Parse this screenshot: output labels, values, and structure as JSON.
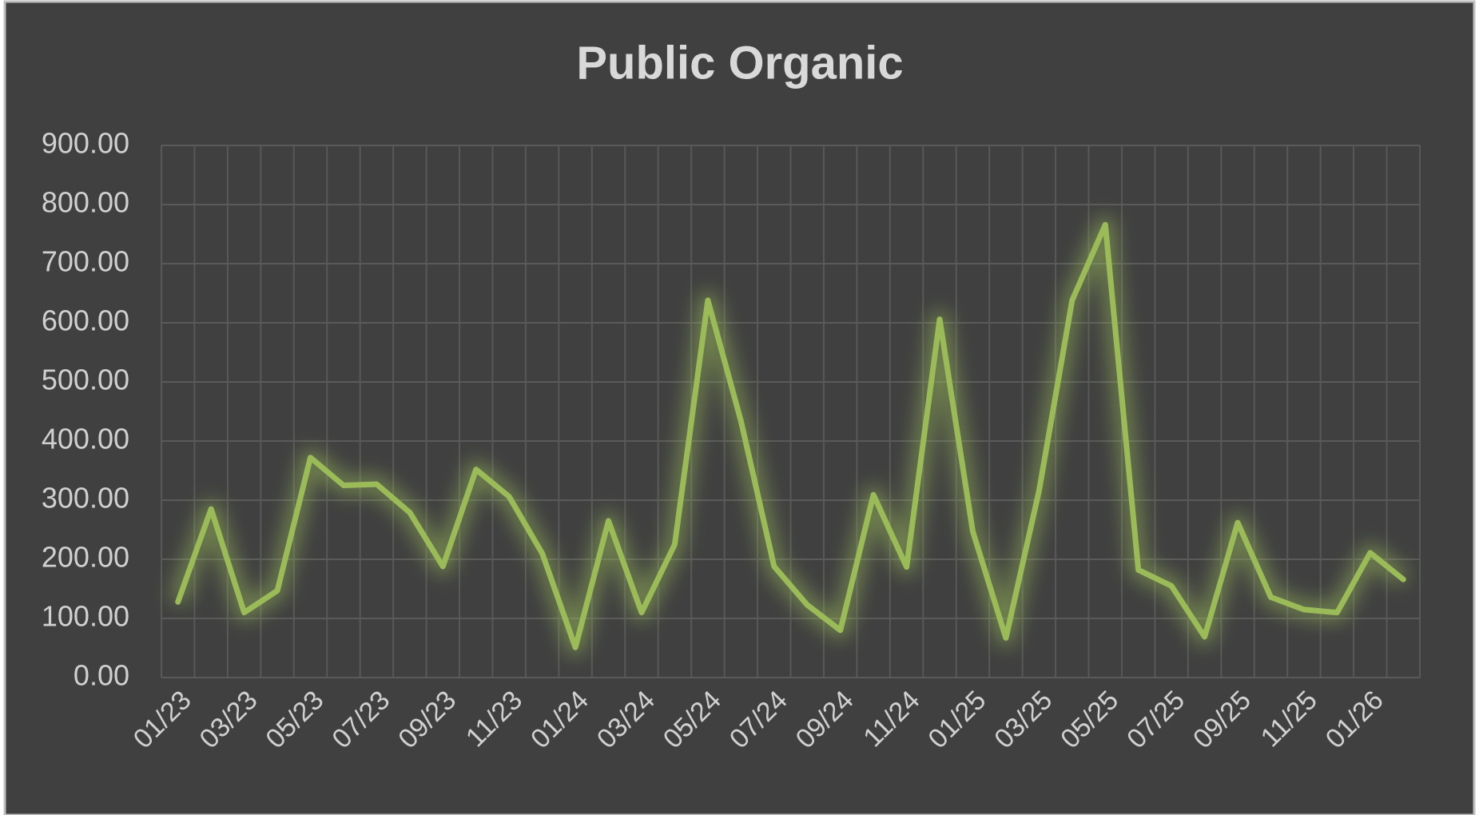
{
  "chart_data": {
    "type": "line",
    "title": "Public Organic",
    "categories": [
      "01/23",
      null,
      "03/23",
      null,
      "05/23",
      null,
      "07/23",
      null,
      "09/23",
      null,
      "11/23",
      null,
      "01/24",
      null,
      "03/24",
      null,
      "05/24",
      null,
      "07/24",
      null,
      "09/24",
      null,
      "11/24",
      null,
      "01/25",
      null,
      "03/25",
      null,
      "05/25",
      null,
      "07/25",
      null,
      "09/25",
      null,
      "11/25",
      null,
      "01/26",
      null
    ],
    "series": [
      {
        "name": "Public Organic",
        "color": "#9bbb59",
        "values": [
          128,
          285,
          110,
          147,
          372,
          325,
          327,
          279,
          188,
          352,
          306,
          210,
          51,
          265,
          110,
          225,
          638,
          434,
          188,
          123,
          80,
          309,
          187,
          606,
          247,
          67,
          316,
          638,
          766,
          182,
          155,
          69,
          262,
          136,
          115,
          110,
          211,
          166
        ]
      }
    ],
    "ylim": [
      0,
      900
    ],
    "yticks": [
      {
        "value": 0,
        "label": "0.00"
      },
      {
        "value": 100,
        "label": "100.00"
      },
      {
        "value": 200,
        "label": "200.00"
      },
      {
        "value": 300,
        "label": "300.00"
      },
      {
        "value": 400,
        "label": "400.00"
      },
      {
        "value": 500,
        "label": "500.00"
      },
      {
        "value": 600,
        "label": "600.00"
      },
      {
        "value": 700,
        "label": "700.00"
      },
      {
        "value": 800,
        "label": "800.00"
      },
      {
        "value": 900,
        "label": "900.00"
      }
    ],
    "grid": true
  }
}
